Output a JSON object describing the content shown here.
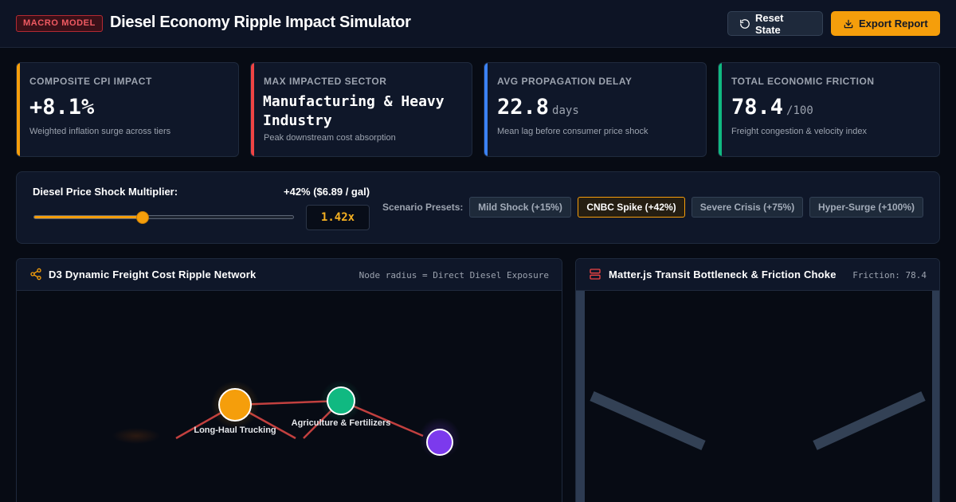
{
  "header": {
    "badge": "MACRO MODEL",
    "title": "Diesel Economy Ripple Impact Simulator",
    "reset_label": "Reset State",
    "export_label": "Export Report"
  },
  "kpis": [
    {
      "label": "COMPOSITE CPI IMPACT",
      "value": "+8.1%",
      "unit": "",
      "sub": "Weighted inflation surge across tiers",
      "color": "#f59e0b"
    },
    {
      "label": "MAX IMPACTED SECTOR",
      "value": "Manufacturing & Heavy Industry",
      "unit": "",
      "sub": "Peak downstream cost absorption",
      "color": "#ef4444"
    },
    {
      "label": "AVG PROPAGATION DELAY",
      "value": "22.8",
      "unit": "days",
      "sub": "Mean lag before consumer price shock",
      "color": "#3b82f6"
    },
    {
      "label": "TOTAL ECONOMIC FRICTION",
      "value": "78.4",
      "unit": "/100",
      "sub": "Freight congestion & velocity index",
      "color": "#10b981"
    }
  ],
  "control": {
    "label": "Diesel Price Shock Multiplier:",
    "value_text": "+42% ($6.89 / gal)",
    "multiplier": "1.42x",
    "slider_fraction": 0.42,
    "presets_label": "Scenario Presets:",
    "presets": [
      {
        "label": "Mild Shock (+15%)",
        "active": false
      },
      {
        "label": "CNBC Spike (+42%)",
        "active": true
      },
      {
        "label": "Severe Crisis (+75%)",
        "active": false
      },
      {
        "label": "Hyper-Surge (+100%)",
        "active": false
      }
    ]
  },
  "network_panel": {
    "title": "D3 Dynamic Freight Cost Ripple Network",
    "note": "Node radius = Direct Diesel Exposure",
    "nodes": [
      {
        "label": "Long-Haul Trucking",
        "color": "#f59e0b"
      },
      {
        "label": "Agriculture & Fertilizers",
        "color": "#10b981"
      },
      {
        "label": "",
        "color": "#7c3aed"
      }
    ]
  },
  "matter_panel": {
    "title": "Matter.js Transit Bottleneck & Friction Choke",
    "note": "Friction: 78.4"
  },
  "icons": {
    "reset": "refresh-icon",
    "export": "download-icon",
    "network": "share-nodes-icon",
    "matter": "server-stack-icon"
  }
}
